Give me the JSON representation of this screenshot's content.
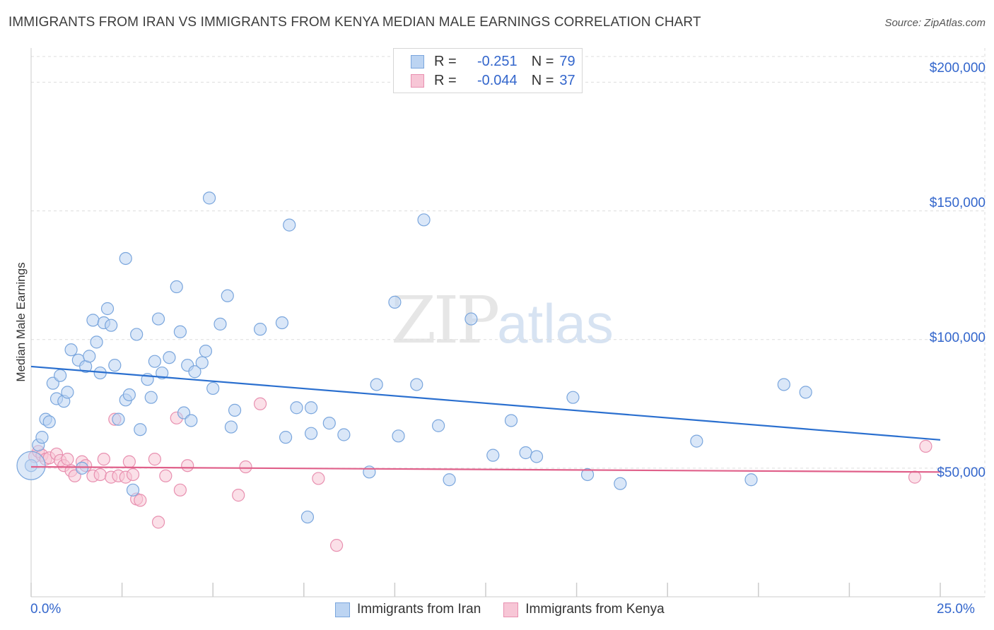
{
  "title": "IMMIGRANTS FROM IRAN VS IMMIGRANTS FROM KENYA MEDIAN MALE EARNINGS CORRELATION CHART",
  "source": "Source: ZipAtlas.com",
  "watermark": {
    "zip": "ZIP",
    "atlas": "atlas"
  },
  "legend_top": [
    {
      "r_label": "R =",
      "r_value": "-0.251",
      "n_label": "N =",
      "n_value": "79"
    },
    {
      "r_label": "R =",
      "r_value": "-0.044",
      "n_label": "N =",
      "n_value": "37"
    }
  ],
  "colors": {
    "iran_fill": "#bcd4f2",
    "iran_stroke": "#7aa6dd",
    "iran_line": "#2a6fcf",
    "kenya_fill": "#f7c6d6",
    "kenya_stroke": "#e890b0",
    "kenya_line": "#e0608a",
    "grid": "#dddddd",
    "axis": "#cccccc",
    "tick_text": "#3366cc"
  },
  "chart_data": {
    "type": "scatter",
    "title": "IMMIGRANTS FROM IRAN VS IMMIGRANTS FROM KENYA MEDIAN MALE EARNINGS CORRELATION CHART",
    "xlabel": "",
    "ylabel": "Median Male Earnings",
    "xlim": [
      0,
      25
    ],
    "ylim": [
      0,
      210000
    ],
    "x_tick_labels": [
      "0.0%",
      "25.0%"
    ],
    "y_ticks": [
      50000,
      100000,
      150000,
      200000
    ],
    "y_tick_labels": [
      "$50,000",
      "$100,000",
      "$150,000",
      "$200,000"
    ],
    "grid": true,
    "legend_position": "bottom",
    "series": [
      {
        "name": "Immigrants from Iran",
        "r": -0.251,
        "n": 79,
        "trend": [
          [
            0,
            89500
          ],
          [
            25,
            61000
          ]
        ],
        "points": [
          [
            0.0,
            51000
          ],
          [
            0.2,
            59000
          ],
          [
            0.3,
            62000
          ],
          [
            0.4,
            69000
          ],
          [
            0.5,
            68000
          ],
          [
            0.6,
            83000
          ],
          [
            0.7,
            77000
          ],
          [
            0.8,
            86000
          ],
          [
            0.9,
            76000
          ],
          [
            1.0,
            79500
          ],
          [
            1.1,
            96000
          ],
          [
            1.3,
            92000
          ],
          [
            1.4,
            50000
          ],
          [
            1.5,
            89500
          ],
          [
            1.6,
            93500
          ],
          [
            1.7,
            107500
          ],
          [
            1.8,
            99000
          ],
          [
            1.9,
            87000
          ],
          [
            2.0,
            106500
          ],
          [
            2.1,
            112000
          ],
          [
            2.2,
            105500
          ],
          [
            2.3,
            90000
          ],
          [
            2.4,
            69000
          ],
          [
            2.6,
            131500
          ],
          [
            2.6,
            76500
          ],
          [
            2.7,
            78500
          ],
          [
            2.9,
            102000
          ],
          [
            3.0,
            65000
          ],
          [
            3.2,
            84500
          ],
          [
            3.3,
            77500
          ],
          [
            3.4,
            91500
          ],
          [
            3.5,
            108000
          ],
          [
            3.6,
            87000
          ],
          [
            3.8,
            93000
          ],
          [
            4.0,
            120500
          ],
          [
            4.1,
            103000
          ],
          [
            4.2,
            71500
          ],
          [
            4.3,
            90000
          ],
          [
            4.4,
            68500
          ],
          [
            4.5,
            87500
          ],
          [
            4.7,
            91000
          ],
          [
            4.8,
            95500
          ],
          [
            4.9,
            155000
          ],
          [
            5.0,
            81000
          ],
          [
            5.2,
            106000
          ],
          [
            5.4,
            117000
          ],
          [
            5.5,
            66000
          ],
          [
            5.6,
            72500
          ],
          [
            6.3,
            104000
          ],
          [
            6.9,
            106500
          ],
          [
            7.0,
            62000
          ],
          [
            7.1,
            144500
          ],
          [
            7.3,
            73500
          ],
          [
            7.7,
            63500
          ],
          [
            7.7,
            73500
          ],
          [
            8.2,
            67500
          ],
          [
            8.6,
            63000
          ],
          [
            9.3,
            48500
          ],
          [
            9.5,
            82500
          ],
          [
            10.0,
            114500
          ],
          [
            10.1,
            62500
          ],
          [
            10.6,
            82500
          ],
          [
            10.8,
            146500
          ],
          [
            11.2,
            66500
          ],
          [
            11.5,
            45500
          ],
          [
            12.1,
            108000
          ],
          [
            12.7,
            55000
          ],
          [
            13.2,
            68500
          ],
          [
            13.6,
            56000
          ],
          [
            13.9,
            54500
          ],
          [
            14.9,
            77500
          ],
          [
            15.3,
            47500
          ],
          [
            16.2,
            44000
          ],
          [
            18.3,
            60500
          ],
          [
            19.8,
            45500
          ],
          [
            20.7,
            82500
          ],
          [
            21.3,
            79500
          ],
          [
            2.8,
            41500
          ],
          [
            7.6,
            31000
          ]
        ]
      },
      {
        "name": "Immigrants from Kenya",
        "r": -0.044,
        "n": 37,
        "trend": [
          [
            0,
            50500
          ],
          [
            25,
            48500
          ]
        ],
        "points": [
          [
            0.1,
            54500
          ],
          [
            0.2,
            56500
          ],
          [
            0.3,
            55000
          ],
          [
            0.4,
            53500
          ],
          [
            0.5,
            54000
          ],
          [
            0.7,
            55500
          ],
          [
            0.8,
            53000
          ],
          [
            0.9,
            51000
          ],
          [
            1.0,
            53500
          ],
          [
            1.1,
            49000
          ],
          [
            1.2,
            47000
          ],
          [
            1.4,
            52500
          ],
          [
            1.5,
            51000
          ],
          [
            1.7,
            47000
          ],
          [
            1.9,
            47500
          ],
          [
            2.0,
            53500
          ],
          [
            2.2,
            46500
          ],
          [
            2.3,
            69000
          ],
          [
            2.4,
            47000
          ],
          [
            2.6,
            46500
          ],
          [
            2.7,
            52500
          ],
          [
            2.8,
            47500
          ],
          [
            2.9,
            38000
          ],
          [
            3.0,
            37500
          ],
          [
            3.4,
            53500
          ],
          [
            3.5,
            29000
          ],
          [
            3.7,
            47000
          ],
          [
            4.0,
            69500
          ],
          [
            4.1,
            41500
          ],
          [
            4.3,
            51000
          ],
          [
            5.7,
            39500
          ],
          [
            5.9,
            50500
          ],
          [
            6.3,
            75000
          ],
          [
            7.9,
            46000
          ],
          [
            8.4,
            20000
          ],
          [
            24.3,
            46500
          ],
          [
            24.6,
            58500
          ]
        ]
      }
    ]
  },
  "bottom_legend": [
    "Immigrants from Iran",
    "Immigrants from Kenya"
  ]
}
